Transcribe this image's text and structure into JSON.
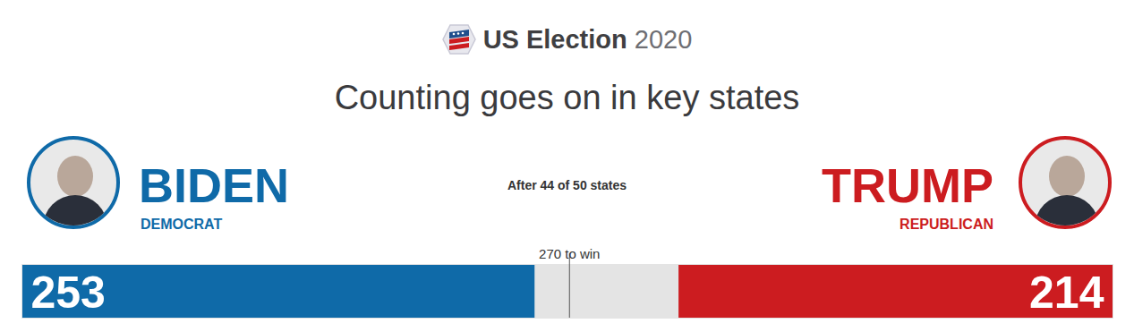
{
  "chart_data": {
    "type": "bar",
    "orientation": "horizontal",
    "title": "US Election 2020",
    "subtitle": "Counting goes on in key states",
    "note": "After 44 of 50 states",
    "series": [
      {
        "name": "BIDEN",
        "party": "DEMOCRAT",
        "color": "#0f6aa8",
        "values": [
          253
        ]
      },
      {
        "name": "TRUMP",
        "party": "REPUBLICAN",
        "color": "#cc1c20",
        "values": [
          214
        ]
      }
    ],
    "threshold": {
      "value": 270,
      "label": "270 to win"
    },
    "xlim": [
      0,
      538
    ],
    "data_labels": true,
    "tick_labels": false
  }
}
